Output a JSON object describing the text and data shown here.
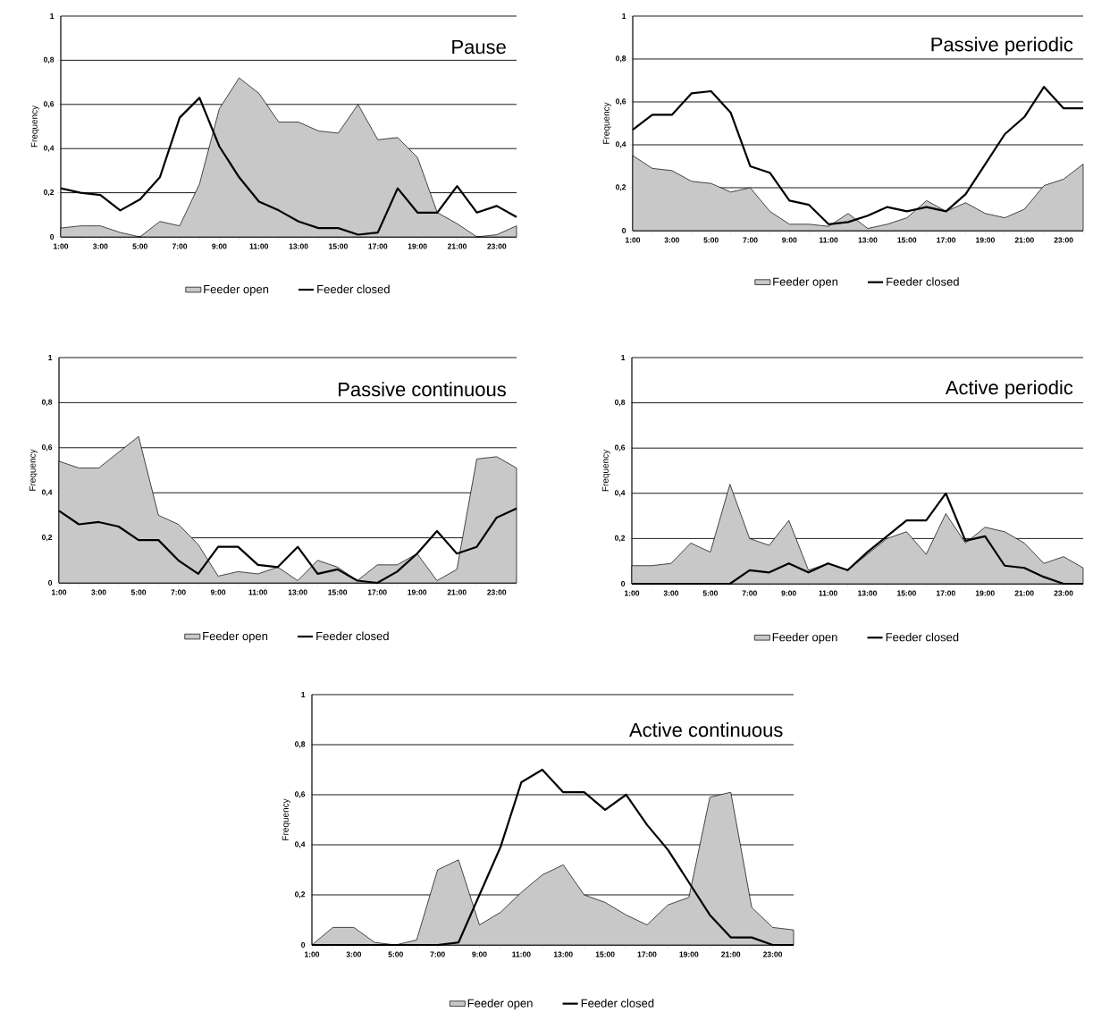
{
  "chart_data": [
    {
      "type": "area",
      "title": "Pause",
      "ylabel": "Frequency",
      "categories": [
        "1:00",
        null,
        "3:00",
        null,
        "5:00",
        null,
        "7:00",
        null,
        "9:00",
        null,
        "11:00",
        null,
        "13:00",
        null,
        "15:00",
        null,
        "17:00",
        null,
        "19:00",
        null,
        "21:00",
        null,
        "23:00",
        null
      ],
      "ylim": [
        0,
        1
      ],
      "yticks": [
        0,
        {
          "value": 0.2,
          "label": "0,2"
        },
        {
          "value": 0.4,
          "label": "0,4"
        },
        {
          "value": 0.6,
          "label": "0,6"
        },
        {
          "value": 0.8,
          "label": "0,8"
        },
        1
      ],
      "grid": "y",
      "legend": "bottom",
      "series": [
        {
          "name": "Feeder open",
          "color": "#c8c8c8",
          "values": [
            0.04,
            0.05,
            0.05,
            0.02,
            0.0,
            0.07,
            0.05,
            0.24,
            0.58,
            0.72,
            0.65,
            0.52,
            0.52,
            0.48,
            0.47,
            0.6,
            0.44,
            0.45,
            0.36,
            0.11,
            0.06,
            0.0,
            0.01,
            0.05
          ]
        },
        {
          "name": "Feeder closed",
          "type": "line",
          "color": "#000000",
          "values": [
            0.22,
            0.2,
            0.19,
            0.12,
            0.17,
            0.27,
            0.54,
            0.63,
            0.41,
            0.27,
            0.16,
            0.12,
            0.07,
            0.04,
            0.04,
            0.01,
            0.02,
            0.22,
            0.11,
            0.11,
            0.23,
            0.11,
            0.14,
            0.09
          ]
        }
      ]
    },
    {
      "type": "area",
      "title": "Passive    periodic",
      "ylabel": "Frequency",
      "categories": [
        "1:00",
        null,
        "3:00",
        null,
        "5:00",
        null,
        "7:00",
        null,
        "9:00",
        null,
        "11:00",
        null,
        "13:00",
        null,
        "15:00",
        null,
        "17:00",
        null,
        "19:00",
        null,
        "21:00",
        null,
        "23:00",
        null
      ],
      "ylim": [
        0,
        1
      ],
      "yticks": [
        0,
        {
          "value": 0.2,
          "label": "0,2"
        },
        {
          "value": 0.4,
          "label": "0,4"
        },
        {
          "value": 0.6,
          "label": "0,6"
        },
        {
          "value": 0.8,
          "label": "0,8"
        },
        1
      ],
      "grid": "y",
      "legend": "bottom",
      "series": [
        {
          "name": "Feeder open",
          "color": "#c8c8c8",
          "values": [
            0.35,
            0.29,
            0.28,
            0.23,
            0.22,
            0.18,
            0.2,
            0.09,
            0.03,
            0.03,
            0.02,
            0.08,
            0.01,
            0.03,
            0.06,
            0.14,
            0.09,
            0.13,
            0.08,
            0.06,
            0.1,
            0.21,
            0.24,
            0.31
          ]
        },
        {
          "name": "Feeder closed",
          "type": "line",
          "color": "#000000",
          "values": [
            0.47,
            0.54,
            0.54,
            0.64,
            0.65,
            0.55,
            0.3,
            0.27,
            0.14,
            0.12,
            0.03,
            0.04,
            0.07,
            0.11,
            0.09,
            0.11,
            0.09,
            0.17,
            0.31,
            0.45,
            0.53,
            0.67,
            0.57,
            0.57
          ]
        }
      ]
    },
    {
      "type": "area",
      "title": "Passive    continuous",
      "ylabel": "Frequency",
      "categories": [
        "1:00",
        null,
        "3:00",
        null,
        "5:00",
        null,
        "7:00",
        null,
        "9:00",
        null,
        "11:00",
        null,
        "13:00",
        null,
        "15:00",
        null,
        "17:00",
        null,
        "19:00",
        null,
        "21:00",
        null,
        "23:00",
        null
      ],
      "ylim": [
        0,
        1
      ],
      "yticks": [
        0,
        {
          "value": 0.2,
          "label": "0,2"
        },
        {
          "value": 0.4,
          "label": "0,4"
        },
        {
          "value": 0.6,
          "label": "0,6"
        },
        {
          "value": 0.8,
          "label": "0,8"
        },
        1
      ],
      "grid": "y",
      "legend": "bottom",
      "series": [
        {
          "name": "Feeder open",
          "color": "#c8c8c8",
          "values": [
            0.54,
            0.51,
            0.51,
            0.58,
            0.65,
            0.3,
            0.26,
            0.17,
            0.03,
            0.05,
            0.04,
            0.07,
            0.01,
            0.1,
            0.07,
            0.01,
            0.08,
            0.08,
            0.13,
            0.01,
            0.06,
            0.55,
            0.56,
            0.51
          ]
        },
        {
          "name": "Feeder closed",
          "type": "line",
          "color": "#000000",
          "values": [
            0.32,
            0.26,
            0.27,
            0.25,
            0.19,
            0.19,
            0.1,
            0.04,
            0.16,
            0.16,
            0.08,
            0.07,
            0.16,
            0.04,
            0.06,
            0.01,
            0.0,
            0.05,
            0.13,
            0.23,
            0.13,
            0.16,
            0.29,
            0.33
          ]
        }
      ]
    },
    {
      "type": "area",
      "title": "Active    periodic",
      "ylabel": "Frequency",
      "categories": [
        "1:00",
        null,
        "3:00",
        null,
        "5:00",
        null,
        "7:00",
        null,
        "9:00",
        null,
        "11:00",
        null,
        "13:00",
        null,
        "15:00",
        null,
        "17:00",
        null,
        "19:00",
        null,
        "21:00",
        null,
        "23:00",
        null
      ],
      "ylim": [
        0,
        1
      ],
      "yticks": [
        0,
        {
          "value": 0.2,
          "label": "0,2"
        },
        {
          "value": 0.4,
          "label": "0,4"
        },
        {
          "value": 0.6,
          "label": "0,6"
        },
        {
          "value": 0.8,
          "label": "0,8"
        },
        1
      ],
      "grid": "y",
      "legend": "bottom",
      "series": [
        {
          "name": "Feeder open",
          "color": "#c8c8c8",
          "values": [
            0.08,
            0.08,
            0.09,
            0.18,
            0.14,
            0.44,
            0.2,
            0.17,
            0.28,
            0.06,
            0.09,
            0.06,
            0.13,
            0.2,
            0.23,
            0.13,
            0.31,
            0.18,
            0.25,
            0.23,
            0.18,
            0.09,
            0.12,
            0.07
          ]
        },
        {
          "name": "Feeder closed",
          "type": "line",
          "color": "#000000",
          "values": [
            0.0,
            0.0,
            0.0,
            0.0,
            0.0,
            0.0,
            0.06,
            0.05,
            0.09,
            0.05,
            0.09,
            0.06,
            0.14,
            0.21,
            0.28,
            0.28,
            0.4,
            0.19,
            0.21,
            0.08,
            0.07,
            0.03,
            0.0,
            0.0
          ]
        }
      ]
    },
    {
      "type": "area",
      "title": "Active    continuous",
      "ylabel": "Frequency",
      "categories": [
        "1:00",
        null,
        "3:00",
        null,
        "5:00",
        null,
        "7:00",
        null,
        "9:00",
        null,
        "11:00",
        null,
        "13:00",
        null,
        "15:00",
        null,
        "17:00",
        null,
        "19:00",
        null,
        "21:00",
        null,
        "23:00",
        null
      ],
      "ylim": [
        0,
        1
      ],
      "yticks": [
        0,
        {
          "value": 0.2,
          "label": "0,2"
        },
        {
          "value": 0.4,
          "label": "0,4"
        },
        {
          "value": 0.6,
          "label": "0,6"
        },
        {
          "value": 0.8,
          "label": "0,8"
        },
        1
      ],
      "grid": "y",
      "legend": "bottom",
      "series": [
        {
          "name": "Feeder open",
          "color": "#c8c8c8",
          "values": [
            0.0,
            0.07,
            0.07,
            0.01,
            0.0,
            0.02,
            0.3,
            0.34,
            0.08,
            0.13,
            0.21,
            0.28,
            0.32,
            0.2,
            0.17,
            0.12,
            0.08,
            0.16,
            0.19,
            0.59,
            0.61,
            0.15,
            0.07,
            0.06
          ]
        },
        {
          "name": "Feeder closed",
          "type": "line",
          "color": "#000000",
          "values": [
            0.0,
            0.0,
            0.0,
            0.0,
            0.0,
            0.0,
            0.0,
            0.01,
            0.2,
            0.39,
            0.65,
            0.7,
            0.61,
            0.61,
            0.54,
            0.6,
            0.48,
            0.38,
            0.25,
            0.12,
            0.03,
            0.03,
            0.0,
            0.0
          ]
        }
      ]
    }
  ]
}
